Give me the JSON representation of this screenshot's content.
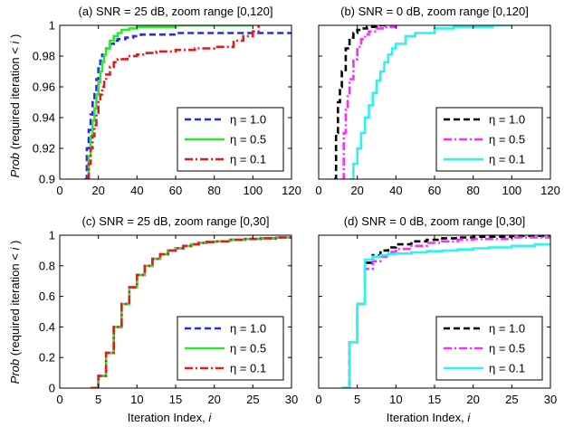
{
  "figure": {
    "ylabel_italic": "Prob",
    "ylabel_rest": " (required iteration < ",
    "ylabel_var": "i",
    "ylabel_close": " )",
    "xlabel_text": "Iteration Index, ",
    "xlabel_var": "i"
  },
  "chart_data": [
    {
      "type": "line",
      "title": "(a) SNR = 25 dB, zoom range [0,120]",
      "xlim": [
        0,
        120
      ],
      "ylim": [
        0.9,
        1.0
      ],
      "xticks": [
        0,
        20,
        40,
        60,
        80,
        100,
        120
      ],
      "xtick_labels": [
        "0",
        "20",
        "40",
        "60",
        "80",
        "100",
        "120"
      ],
      "yticks": [
        0.9,
        0.92,
        0.94,
        0.96,
        0.98,
        1.0
      ],
      "ytick_labels": [
        "0.9",
        "0.92",
        "0.94",
        "0.96",
        "0.98",
        "1"
      ],
      "legend_position": "bottom-right",
      "series": [
        {
          "name": "η = 1.0",
          "color": "#1f2bff",
          "style": "dashed",
          "x": [
            13,
            14,
            15,
            16,
            17,
            18,
            19,
            20,
            21,
            22,
            24,
            26,
            28,
            30,
            34,
            38,
            42,
            50,
            60,
            80,
            100,
            120
          ],
          "y": [
            0.9,
            0.92,
            0.932,
            0.942,
            0.95,
            0.958,
            0.965,
            0.972,
            0.977,
            0.981,
            0.985,
            0.988,
            0.99,
            0.991,
            0.992,
            0.993,
            0.994,
            0.994,
            0.995,
            0.995,
            0.995,
            0.995
          ]
        },
        {
          "name": "η = 0.5",
          "color": "#2ee82e",
          "style": "solid",
          "x": [
            14,
            15,
            16,
            17,
            18,
            19,
            20,
            21,
            22,
            23,
            24,
            26,
            28,
            30,
            32,
            36,
            40,
            50,
            60,
            80,
            100
          ],
          "y": [
            0.9,
            0.915,
            0.928,
            0.938,
            0.946,
            0.955,
            0.963,
            0.97,
            0.976,
            0.981,
            0.985,
            0.99,
            0.993,
            0.995,
            0.997,
            0.998,
            0.999,
            0.999,
            1.0,
            1.0,
            1.0
          ]
        },
        {
          "name": "η = 0.1",
          "color": "#e51b1b",
          "style": "dashdot",
          "x": [
            14,
            15,
            16,
            17,
            18,
            19,
            20,
            21,
            22,
            23,
            24,
            26,
            28,
            30,
            35,
            40,
            45,
            50,
            60,
            70,
            80,
            90,
            95,
            100,
            103
          ],
          "y": [
            0.9,
            0.91,
            0.92,
            0.928,
            0.935,
            0.942,
            0.95,
            0.955,
            0.96,
            0.964,
            0.968,
            0.973,
            0.976,
            0.978,
            0.98,
            0.981,
            0.982,
            0.983,
            0.984,
            0.985,
            0.986,
            0.99,
            0.993,
            0.996,
            1.0
          ]
        }
      ]
    },
    {
      "type": "line",
      "title": "(b) SNR = 0 dB, zoom range [0,120]",
      "xlim": [
        0,
        120
      ],
      "ylim": [
        0.9,
        1.0
      ],
      "xticks": [
        0,
        20,
        40,
        60,
        80,
        100,
        120
      ],
      "xtick_labels": [
        "0",
        "20",
        "40",
        "60",
        "80",
        "100",
        "120"
      ],
      "yticks": [
        0.9,
        0.92,
        0.94,
        0.96,
        0.98,
        1.0
      ],
      "legend_position": "bottom-right",
      "series": [
        {
          "name": "η = 1.0",
          "color": "#000000",
          "style": "dashed",
          "x": [
            8,
            9,
            10,
            11,
            12,
            14,
            16,
            18,
            20,
            22,
            25,
            30,
            35
          ],
          "y": [
            0.9,
            0.93,
            0.95,
            0.96,
            0.97,
            0.985,
            0.992,
            0.995,
            0.997,
            0.998,
            0.999,
            1.0,
            1.0
          ]
        },
        {
          "name": "η = 0.5",
          "color": "#ff2bff",
          "style": "dashdot",
          "x": [
            12,
            13,
            14,
            15,
            16,
            18,
            20,
            22,
            24,
            26,
            30,
            35,
            40
          ],
          "y": [
            0.9,
            0.93,
            0.945,
            0.955,
            0.965,
            0.978,
            0.986,
            0.991,
            0.994,
            0.996,
            0.998,
            0.999,
            1.0
          ]
        },
        {
          "name": "η = 0.1",
          "color": "#2ef2f2",
          "style": "solid",
          "x": [
            16,
            18,
            20,
            22,
            24,
            26,
            28,
            30,
            32,
            34,
            36,
            38,
            40,
            45,
            50,
            60,
            70,
            80,
            90,
            100
          ],
          "y": [
            0.9,
            0.91,
            0.92,
            0.93,
            0.94,
            0.948,
            0.956,
            0.964,
            0.97,
            0.976,
            0.981,
            0.985,
            0.988,
            0.993,
            0.995,
            0.998,
            0.999,
            0.999,
            1.0,
            1.0
          ]
        }
      ]
    },
    {
      "type": "line",
      "title": "(c) SNR = 25 dB, zoom range [0,30]",
      "xlim": [
        0,
        30
      ],
      "ylim": [
        0,
        1
      ],
      "xticks": [
        0,
        5,
        10,
        15,
        20,
        25,
        30
      ],
      "xtick_labels": [
        "0",
        "5",
        "10",
        "15",
        "20",
        "25",
        "30"
      ],
      "yticks": [
        0,
        0.2,
        0.4,
        0.6,
        0.8,
        1.0
      ],
      "ytick_labels": [
        "0",
        "0.2",
        "0.4",
        "0.6",
        "0.8",
        "1"
      ],
      "legend_position": "bottom-right",
      "series": [
        {
          "name": "η = 1.0",
          "color": "#1f2bff",
          "style": "dashed",
          "x": [
            4,
            5,
            6,
            7,
            8,
            9,
            10,
            11,
            12,
            13,
            14,
            15,
            16,
            17,
            18,
            19,
            20,
            22,
            24,
            26,
            28,
            30
          ],
          "y": [
            0,
            0.08,
            0.23,
            0.4,
            0.55,
            0.66,
            0.74,
            0.8,
            0.845,
            0.875,
            0.9,
            0.915,
            0.93,
            0.94,
            0.95,
            0.955,
            0.96,
            0.97,
            0.975,
            0.98,
            0.985,
            0.99
          ]
        },
        {
          "name": "η = 0.5",
          "color": "#2ee82e",
          "style": "solid",
          "x": [
            4,
            5,
            6,
            7,
            8,
            9,
            10,
            11,
            12,
            13,
            14,
            15,
            16,
            17,
            18,
            19,
            20,
            22,
            24,
            26,
            28,
            30
          ],
          "y": [
            0,
            0.08,
            0.23,
            0.4,
            0.55,
            0.66,
            0.74,
            0.8,
            0.845,
            0.875,
            0.9,
            0.915,
            0.93,
            0.94,
            0.95,
            0.955,
            0.96,
            0.97,
            0.975,
            0.98,
            0.985,
            0.99
          ]
        },
        {
          "name": "η = 0.1",
          "color": "#e51b1b",
          "style": "dashdot",
          "x": [
            4,
            5,
            6,
            7,
            8,
            9,
            10,
            11,
            12,
            13,
            14,
            15,
            16,
            17,
            18,
            19,
            20,
            22,
            24,
            26,
            28,
            30
          ],
          "y": [
            0,
            0.08,
            0.23,
            0.4,
            0.55,
            0.66,
            0.74,
            0.8,
            0.845,
            0.875,
            0.9,
            0.915,
            0.93,
            0.94,
            0.95,
            0.955,
            0.96,
            0.97,
            0.975,
            0.98,
            0.985,
            0.99
          ]
        }
      ]
    },
    {
      "type": "line",
      "title": "(d) SNR = 0 dB, zoom range [0,30]",
      "xlim": [
        0,
        30
      ],
      "ylim": [
        0,
        1
      ],
      "xticks": [
        0,
        5,
        10,
        15,
        20,
        25,
        30
      ],
      "xtick_labels": [
        "0",
        "5",
        "10",
        "15",
        "20",
        "25",
        "30"
      ],
      "yticks": [
        0,
        0.2,
        0.4,
        0.6,
        0.8,
        1.0
      ],
      "legend_position": "bottom-right",
      "series": [
        {
          "name": "η = 1.0",
          "color": "#000000",
          "style": "dashed",
          "x": [
            3,
            4,
            5,
            6,
            7,
            8,
            9,
            10,
            12,
            14,
            16,
            18,
            20,
            25,
            30
          ],
          "y": [
            0,
            0.3,
            0.55,
            0.82,
            0.87,
            0.9,
            0.92,
            0.94,
            0.96,
            0.97,
            0.98,
            0.985,
            0.99,
            0.995,
            1.0
          ]
        },
        {
          "name": "η = 0.5",
          "color": "#ff2bff",
          "style": "dashdot",
          "x": [
            3,
            4,
            5,
            6,
            7,
            8,
            9,
            10,
            12,
            14,
            16,
            18,
            20,
            25,
            30
          ],
          "y": [
            0,
            0.3,
            0.55,
            0.78,
            0.83,
            0.86,
            0.89,
            0.91,
            0.93,
            0.95,
            0.96,
            0.97,
            0.975,
            0.985,
            0.99
          ]
        },
        {
          "name": "η = 0.1",
          "color": "#2ef2f2",
          "style": "solid",
          "x": [
            3,
            4,
            5,
            6,
            7,
            8,
            9,
            10,
            12,
            14,
            16,
            18,
            20,
            22,
            25,
            28,
            30
          ],
          "y": [
            0,
            0.3,
            0.55,
            0.84,
            0.86,
            0.87,
            0.875,
            0.88,
            0.888,
            0.895,
            0.9,
            0.907,
            0.914,
            0.92,
            0.93,
            0.94,
            0.948
          ]
        }
      ]
    }
  ]
}
